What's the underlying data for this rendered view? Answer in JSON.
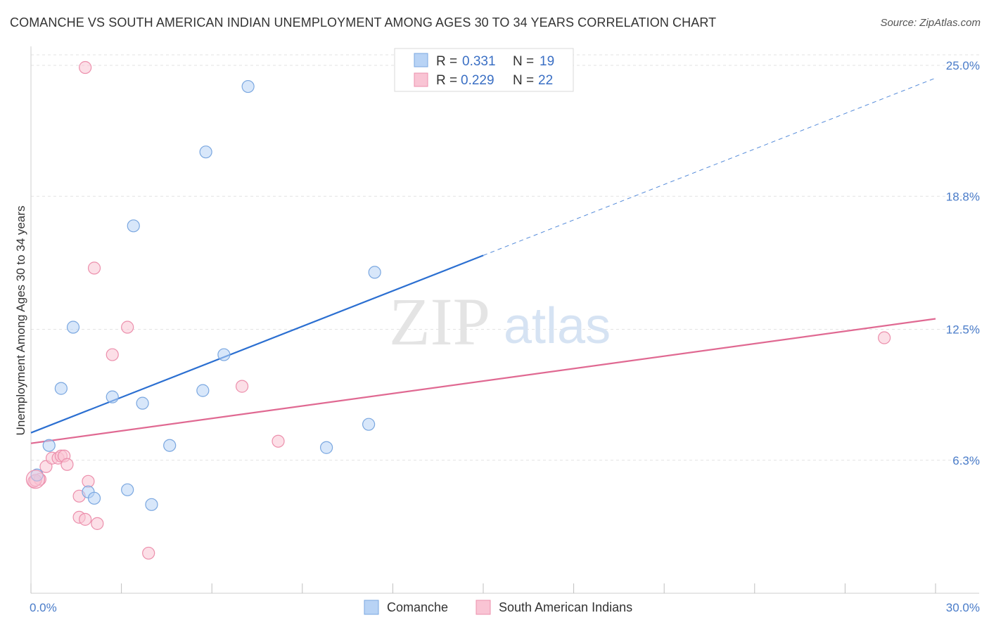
{
  "title": "COMANCHE VS SOUTH AMERICAN INDIAN UNEMPLOYMENT AMONG AGES 30 TO 34 YEARS CORRELATION CHART",
  "source": "Source: ZipAtlas.com",
  "watermark": {
    "zip": "ZIP",
    "atlas": "atlas"
  },
  "colors": {
    "comanche_fill": "#b8d3f5",
    "comanche_stroke": "#7aa7e0",
    "comanche_line": "#2b6fd1",
    "sai_fill": "#f9c4d4",
    "sai_stroke": "#ec8fac",
    "sai_line": "#e06992"
  },
  "legend": {
    "rows": [
      {
        "r_label": "R =",
        "r_value": "0.331",
        "n_label": "N =",
        "n_value": "19"
      },
      {
        "r_label": "R =",
        "r_value": "0.229",
        "n_label": "N =",
        "n_value": "22"
      }
    ]
  },
  "chart_data": {
    "type": "scatter",
    "title": "COMANCHE VS SOUTH AMERICAN INDIAN UNEMPLOYMENT AMONG AGES 30 TO 34 YEARS CORRELATION CHART",
    "xlabel": "",
    "ylabel": "Unemployment Among Ages 30 to 34 years",
    "xlim": [
      0,
      30
    ],
    "ylim": [
      0,
      25.5
    ],
    "x_tick_labels": [
      "0.0%",
      "30.0%"
    ],
    "y_ticks": [
      {
        "value": 25.0,
        "label": "25.0%"
      },
      {
        "value": 18.8,
        "label": "18.8%"
      },
      {
        "value": 12.5,
        "label": "12.5%"
      },
      {
        "value": 6.3,
        "label": "6.3%"
      }
    ],
    "series": [
      {
        "name": "Comanche",
        "r": 0.331,
        "n": 19,
        "points": [
          [
            0.2,
            5.6
          ],
          [
            0.6,
            7.0
          ],
          [
            1.0,
            9.7
          ],
          [
            1.4,
            12.6
          ],
          [
            1.9,
            4.8
          ],
          [
            2.1,
            4.5
          ],
          [
            2.7,
            9.3
          ],
          [
            3.2,
            4.9
          ],
          [
            3.4,
            17.4
          ],
          [
            3.7,
            9.0
          ],
          [
            4.0,
            4.2
          ],
          [
            4.6,
            7.0
          ],
          [
            5.7,
            9.6
          ],
          [
            5.8,
            20.9
          ],
          [
            6.4,
            11.3
          ],
          [
            7.2,
            24.0
          ],
          [
            9.8,
            6.9
          ],
          [
            11.2,
            8.0
          ],
          [
            11.4,
            15.2
          ]
        ],
        "trend": {
          "x1": 0,
          "y1": 7.6,
          "x2": 15,
          "y2": 16.0,
          "dash_to_x": 30,
          "dash_to_y": 24.4
        }
      },
      {
        "name": "South American Indians",
        "r": 0.229,
        "n": 22,
        "points": [
          [
            0.1,
            5.3
          ],
          [
            0.3,
            5.4
          ],
          [
            0.5,
            6.0
          ],
          [
            0.7,
            6.4
          ],
          [
            0.9,
            6.4
          ],
          [
            1.0,
            6.5
          ],
          [
            1.1,
            6.5
          ],
          [
            1.2,
            6.1
          ],
          [
            1.6,
            3.6
          ],
          [
            1.6,
            4.6
          ],
          [
            1.8,
            3.5
          ],
          [
            1.9,
            5.3
          ],
          [
            2.2,
            3.3
          ],
          [
            1.8,
            24.9
          ],
          [
            2.1,
            15.4
          ],
          [
            2.7,
            11.3
          ],
          [
            3.2,
            12.6
          ],
          [
            3.9,
            1.9
          ],
          [
            7.0,
            9.8
          ],
          [
            8.2,
            7.2
          ],
          [
            28.3,
            12.1
          ],
          [
            0.15,
            5.35
          ]
        ],
        "trend": {
          "x1": 0,
          "y1": 7.1,
          "x2": 30,
          "y2": 13.0
        }
      }
    ],
    "legend_position": "top-center",
    "grid": true
  }
}
